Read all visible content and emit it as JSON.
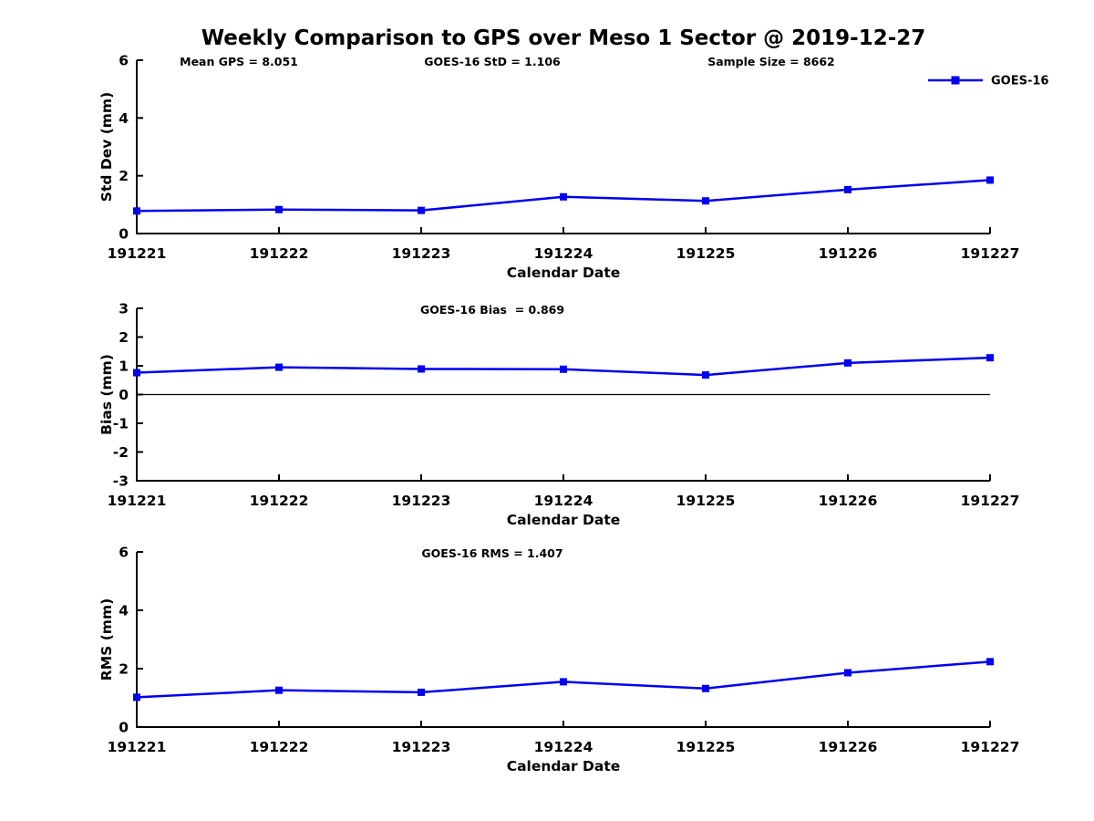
{
  "title": "Weekly Comparison to GPS over Meso 1 Sector @ 2019-12-27",
  "colors": {
    "series": "#0000ee",
    "axis": "#000000",
    "zero_line": "#000000",
    "background": "#ffffff"
  },
  "legend": {
    "label": "GOES-16",
    "marker": "filled-square",
    "position": "top-right"
  },
  "x_axis": {
    "label": "Calendar Date",
    "categories": [
      "191221",
      "191222",
      "191223",
      "191224",
      "191225",
      "191226",
      "191227"
    ]
  },
  "chart_data": [
    {
      "type": "line",
      "name": "std-dev",
      "ylabel": "Std Dev (mm)",
      "xlabel": "Calendar Date",
      "ylim": [
        0,
        6
      ],
      "yticks": [
        0,
        2,
        4,
        6
      ],
      "grid": false,
      "zero_line": false,
      "show_legend": true,
      "annotations": [
        "Mean GPS = 8.051",
        "GOES-16 StD = 1.106",
        "Sample Size = 8662"
      ],
      "categories": [
        "191221",
        "191222",
        "191223",
        "191224",
        "191225",
        "191226",
        "191227"
      ],
      "series": [
        {
          "name": "GOES-16",
          "marker": "square",
          "values": [
            0.78,
            0.83,
            0.8,
            1.27,
            1.13,
            1.52,
            1.85
          ]
        }
      ]
    },
    {
      "type": "line",
      "name": "bias",
      "ylabel": "Bias (mm)",
      "xlabel": "Calendar Date",
      "ylim": [
        -3,
        3
      ],
      "yticks": [
        3,
        2,
        1,
        0,
        -1,
        -2,
        -3
      ],
      "grid": false,
      "zero_line": true,
      "show_legend": false,
      "annotations": [
        "GOES-16 Bias  = 0.869"
      ],
      "categories": [
        "191221",
        "191222",
        "191223",
        "191224",
        "191225",
        "191226",
        "191227"
      ],
      "series": [
        {
          "name": "GOES-16",
          "marker": "square",
          "values": [
            0.76,
            0.95,
            0.89,
            0.88,
            0.68,
            1.1,
            1.28
          ]
        }
      ]
    },
    {
      "type": "line",
      "name": "rms",
      "ylabel": "RMS (mm)",
      "xlabel": "Calendar Date",
      "ylim": [
        0,
        6
      ],
      "yticks": [
        0,
        2,
        4,
        6
      ],
      "grid": false,
      "zero_line": false,
      "show_legend": false,
      "annotations": [
        "GOES-16 RMS = 1.407"
      ],
      "categories": [
        "191221",
        "191222",
        "191223",
        "191224",
        "191225",
        "191226",
        "191227"
      ],
      "series": [
        {
          "name": "GOES-16",
          "marker": "square",
          "values": [
            1.02,
            1.26,
            1.19,
            1.55,
            1.32,
            1.86,
            2.24
          ]
        }
      ]
    }
  ]
}
